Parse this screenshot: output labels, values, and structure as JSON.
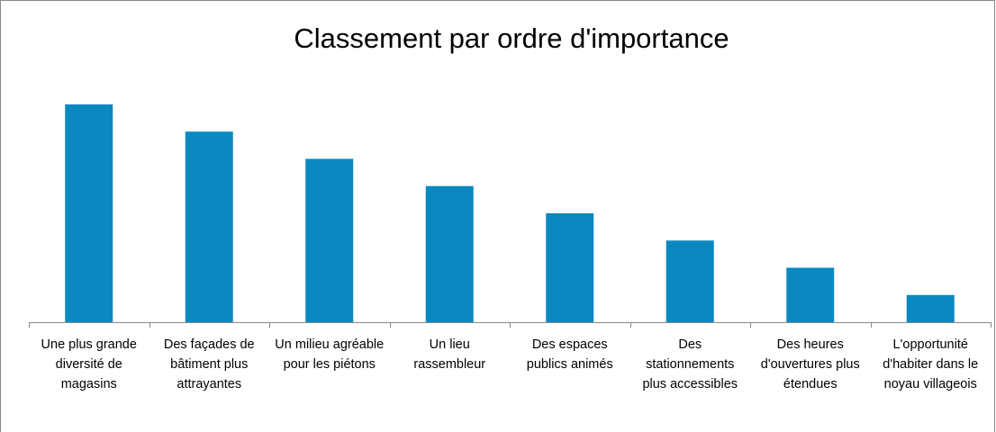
{
  "chart_data": {
    "type": "bar",
    "title": "Classement par ordre d'importance",
    "categories": [
      "Une plus grande diversité de magasins",
      "Des façades de bâtiment plus attrayantes",
      "Un milieu agréable pour les piétons",
      "Un lieu rassembleur",
      "Des espaces publics animés",
      "Des stationnements plus accessibles",
      "Des heures d'ouvertures plus étendues",
      "L'opportunité d'habiter dans le noyau villageois"
    ],
    "values": [
      8,
      7,
      6,
      5,
      4,
      3,
      2,
      1
    ],
    "color": "#0a89c1",
    "ylim": [
      0,
      8
    ]
  }
}
